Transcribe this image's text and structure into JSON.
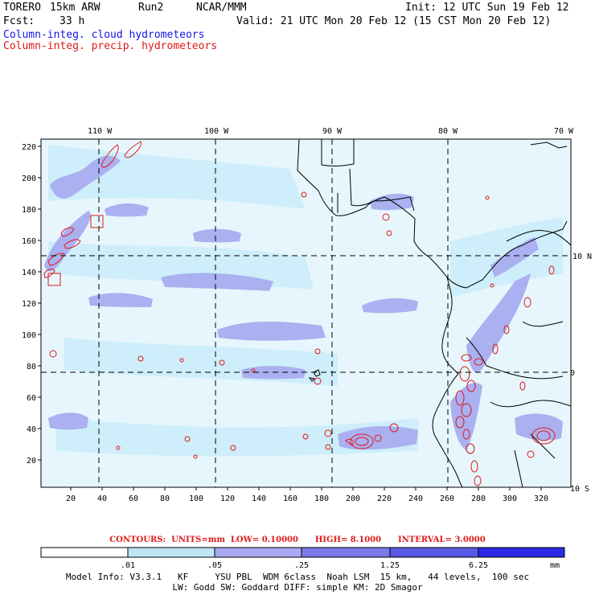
{
  "header": {
    "model": "TORERO",
    "resolution": "15km ARW",
    "run": "Run2",
    "source": "NCAR/MMM",
    "init": "Init: 12 UTC Sun 19 Feb 12",
    "fcst_label": "Fcst:",
    "fcst_value": "33 h",
    "valid": "Valid: 21 UTC Mon 20 Feb 12 (15 CST Mon 20 Feb 12)"
  },
  "fields": {
    "cloud": "Column-integ. cloud hydrometeors",
    "precip": "Column-integ. precip. hydrometeors",
    "cloud_color": "#1515e6",
    "precip_color": "#e01818"
  },
  "map": {
    "lon_labels": [
      "110 W",
      "100 W",
      "90 W",
      "80 W",
      "70 W"
    ],
    "lat_labels": [
      "10 N",
      "0",
      "10 S"
    ],
    "y_ticks": [
      "220",
      "200",
      "180",
      "160",
      "140",
      "120",
      "100",
      "80",
      "60",
      "40",
      "20"
    ],
    "x_ticks": [
      "20",
      "40",
      "60",
      "80",
      "100",
      "120",
      "140",
      "160",
      "180",
      "200",
      "220",
      "240",
      "260",
      "280",
      "300",
      "320"
    ]
  },
  "contours": {
    "label": "CONTOURS:",
    "units": "UNITS=mm",
    "low": "LOW= 0.10000",
    "high": "HIGH= 8.1000",
    "interval": "INTERVAL= 3.0000"
  },
  "colorbar": {
    "labels": [
      ".01",
      ".05",
      ".25",
      "1.25",
      "6.25"
    ],
    "unit": "mm",
    "colors": [
      "#ffffff",
      "#d9f2fb",
      "#bfe6f7",
      "#a9a9f3",
      "#7a7ae8",
      "#5858e4",
      "#2a2ae6"
    ]
  },
  "footer": {
    "line1": "Model Info: V3.3.1   KF     YSU PBL  WDM 6class  Noah LSM  15 km,   44 levels,  100 sec",
    "line2": "LW: Godd SW: Goddard DIFF: simple KM: 2D Smagor"
  }
}
